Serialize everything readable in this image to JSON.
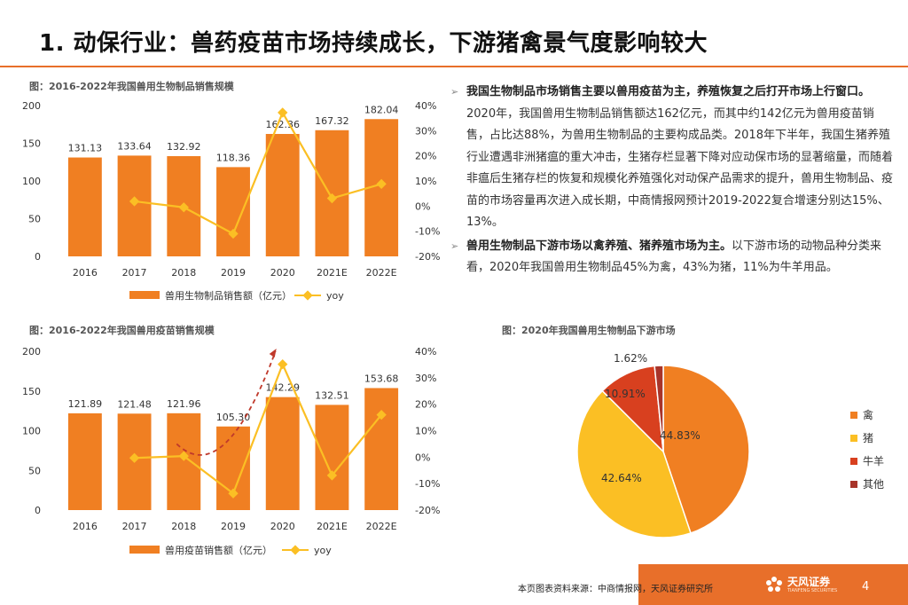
{
  "title": "1. 动保行业：兽药疫苗市场持续成长，下游猪禽景气度影响较大",
  "chart_data": [
    {
      "type": "bar",
      "caption": "图：2016-2022年我国兽用生物制品销售规模",
      "categories": [
        "2016",
        "2017",
        "2018",
        "2019",
        "2020",
        "2021E",
        "2022E"
      ],
      "series": [
        {
          "name": "兽用生物制品销售额（亿元）",
          "type": "bar",
          "axis": "left",
          "values": [
            131.13,
            133.64,
            132.92,
            118.36,
            162.36,
            167.32,
            182.04
          ],
          "labels": [
            "131.13",
            "133.64",
            "132.92",
            "118.36",
            "162.36",
            "167.32",
            "182.04"
          ]
        },
        {
          "name": "yoy",
          "type": "line",
          "axis": "right",
          "values": [
            null,
            1.9,
            -0.5,
            -11.0,
            37.2,
            3.1,
            8.8
          ]
        }
      ],
      "ylim": [
        0,
        200
      ],
      "yticks": [
        "0",
        "50",
        "100",
        "150",
        "200"
      ],
      "y2lim": [
        -20,
        40
      ],
      "y2ticks": [
        "-20%",
        "-10%",
        "0%",
        "10%",
        "20%",
        "30%",
        "40%"
      ],
      "colors": {
        "bar": "#f07f22",
        "line": "#fbbf24"
      }
    },
    {
      "type": "bar",
      "caption": "图：2016-2022年我国兽用疫苗销售规模",
      "categories": [
        "2016",
        "2017",
        "2018",
        "2019",
        "2020",
        "2021E",
        "2022E"
      ],
      "series": [
        {
          "name": "兽用疫苗销售额（亿元）",
          "type": "bar",
          "axis": "left",
          "values": [
            121.89,
            121.48,
            121.96,
            105.3,
            142.29,
            132.51,
            153.68
          ],
          "labels": [
            "121.89",
            "121.48",
            "121.96",
            "105.30",
            "142.29",
            "132.51",
            "153.68"
          ]
        },
        {
          "name": "yoy",
          "type": "line",
          "axis": "right",
          "values": [
            null,
            -0.3,
            0.4,
            -13.7,
            35.1,
            -6.9,
            16.0
          ]
        }
      ],
      "ylim": [
        0,
        200
      ],
      "yticks": [
        "0",
        "50",
        "100",
        "150",
        "200"
      ],
      "y2lim": [
        -20,
        40
      ],
      "y2ticks": [
        "-20%",
        "-10%",
        "0%",
        "10%",
        "20%",
        "30%",
        "40%"
      ],
      "colors": {
        "bar": "#f07f22",
        "line": "#fbbf24",
        "annotation": "#c0392b"
      }
    },
    {
      "type": "pie",
      "caption": "图：2020年我国兽用生物制品下游市场",
      "slices": [
        {
          "name": "禽",
          "value": 44.83,
          "label": "44.83%",
          "color": "#f07f22"
        },
        {
          "name": "猪",
          "value": 42.64,
          "label": "42.64%",
          "color": "#fbbf24"
        },
        {
          "name": "牛羊",
          "value": 10.91,
          "label": "10.91%",
          "color": "#d8401f"
        },
        {
          "name": "其他",
          "value": 1.62,
          "label": "1.62%",
          "color": "#a8342a"
        }
      ]
    }
  ],
  "bullets": [
    {
      "bold": "我国生物制品市场销售主要以兽用疫苗为主，养殖恢复之后打开市场上行窗口。",
      "text": "2020年，我国兽用生物制品销售额达162亿元，而其中约142亿元为兽用疫苗销售，占比达88%，为兽用生物制品的主要构成品类。2018年下半年，我国生猪养殖行业遭遇非洲猪瘟的重大冲击，生猪存栏显著下降对应动保市场的显著缩量，而随着非瘟后生猪存栏的恢复和规模化养殖强化对动保产品需求的提升，兽用生物制品、疫苗的市场容量再次进入成长期，中商情报网预计2019-2022复合增速分别达15%、13%。"
    },
    {
      "bold": "兽用生物制品下游市场以禽养殖、猪养殖市场为主。",
      "text": "以下游市场的动物品种分类来看，2020年我国兽用生物制品45%为禽，43%为猪，11%为牛羊用品。"
    }
  ],
  "footer": {
    "source": "本页图表资料来源：中商情报网，天风证券研究所",
    "logo_name": "天风证券",
    "logo_sub": "TIANFENG SECURITIES",
    "page": "4"
  }
}
